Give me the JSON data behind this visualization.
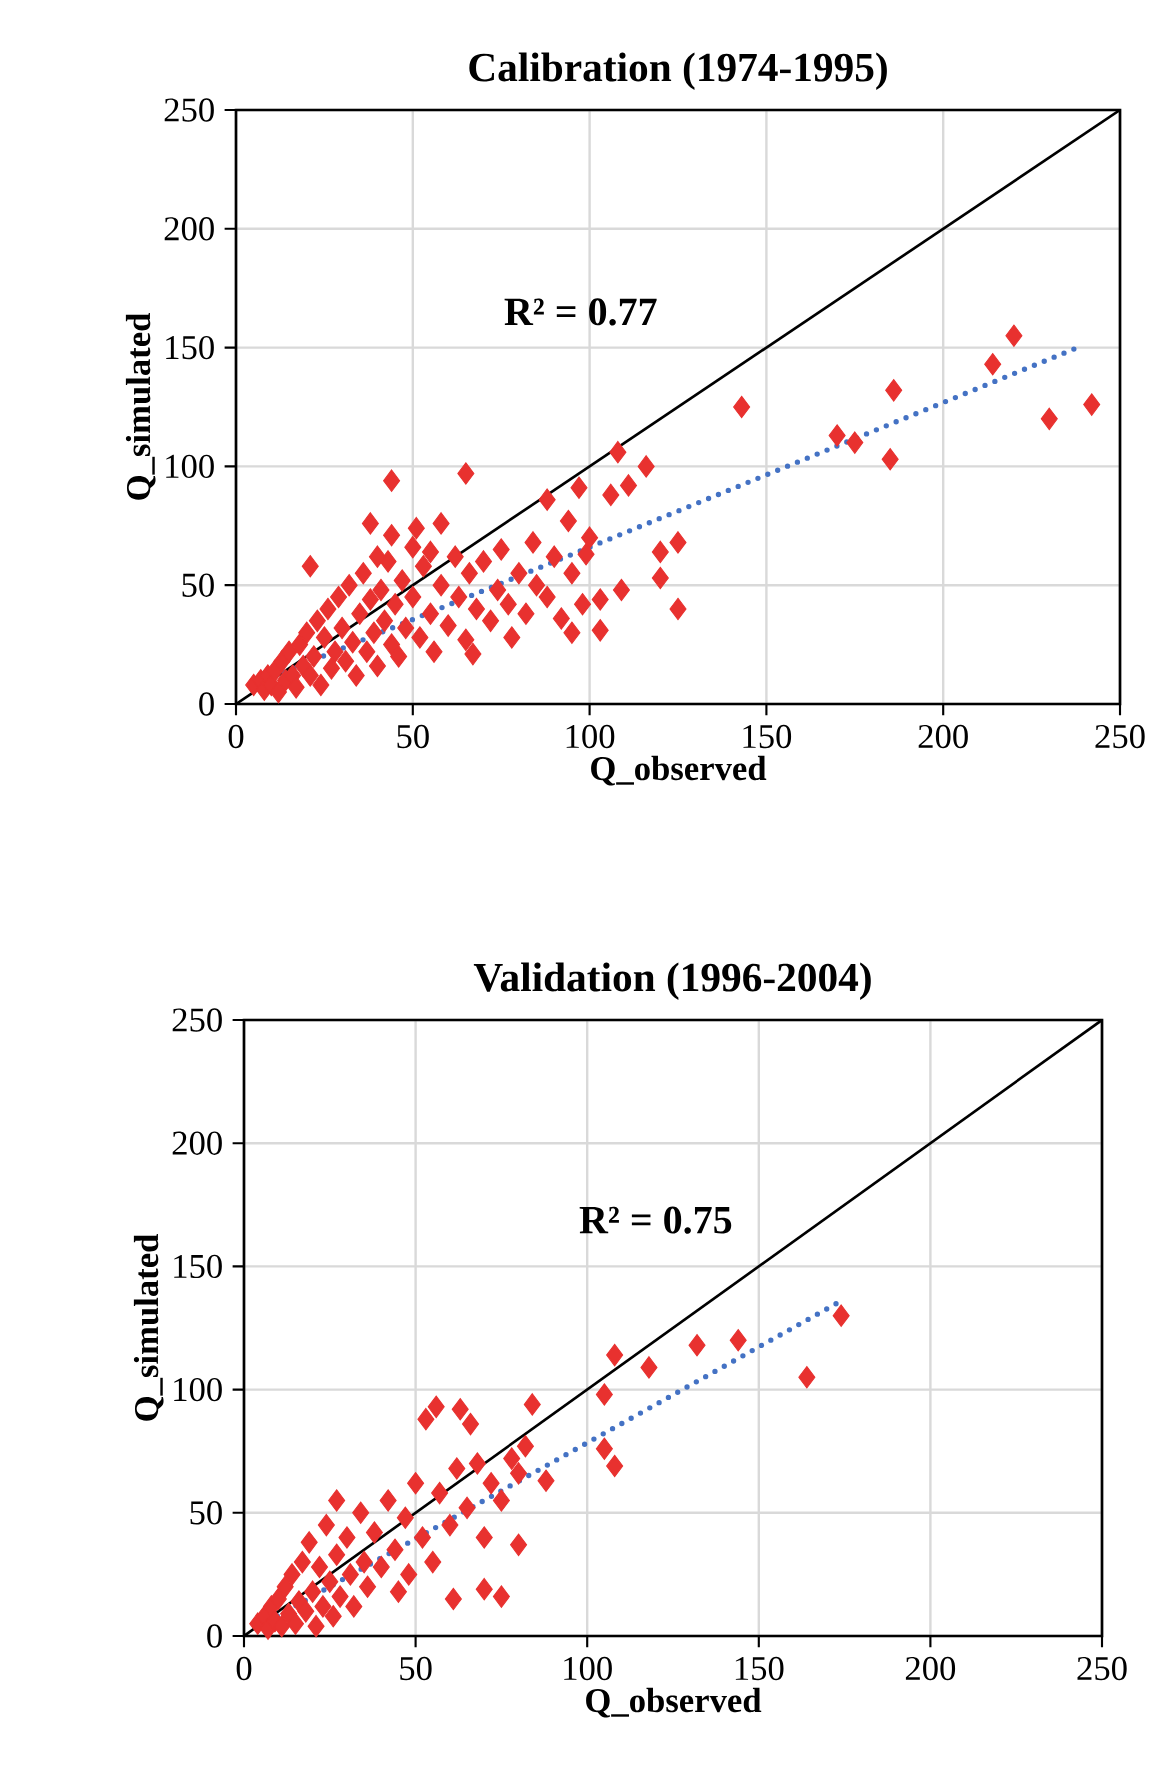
{
  "chart_data": [
    {
      "type": "scatter",
      "title": "Calibration (1974-1995)",
      "xlabel": "Q_observed",
      "ylabel": "Q_simulated",
      "xlim": [
        0,
        250
      ],
      "ylim": [
        0,
        250
      ],
      "xticks": [
        0,
        50,
        100,
        150,
        200,
        250
      ],
      "yticks": [
        0,
        50,
        100,
        150,
        200,
        250
      ],
      "grid": true,
      "annotations": [
        "R² = 0.77"
      ],
      "series": [
        {
          "color": "#e8312f",
          "marker": "diamond",
          "x": [
            5,
            7,
            8,
            9,
            10,
            11,
            12,
            13,
            14,
            15,
            16,
            17,
            18,
            19,
            20,
            21,
            22,
            23,
            24,
            25,
            26,
            27,
            28,
            29,
            30,
            31,
            32,
            33,
            34,
            35,
            36,
            37,
            38,
            39,
            40,
            41,
            42,
            43,
            44,
            45,
            46,
            47,
            48,
            50,
            52,
            53,
            55,
            56,
            58,
            60,
            62,
            63,
            65,
            66,
            68,
            70,
            72,
            74,
            75,
            77,
            78,
            80,
            82,
            84,
            85,
            88,
            90,
            92,
            95,
            98,
            100,
            40,
            50,
            55,
            220,
            214,
            242,
            230,
            186,
            185,
            170,
            175,
            143,
            108,
            116,
            111,
            106,
            97,
            88,
            94,
            125,
            120,
            120,
            125,
            109,
            103,
            103,
            95,
            99,
            44,
            65,
            38,
            44,
            51,
            58,
            21,
            67
          ],
          "values": [
            8,
            10,
            6,
            12,
            8,
            14,
            5,
            18,
            10,
            22,
            12,
            7,
            25,
            16,
            30,
            12,
            20,
            35,
            8,
            28,
            40,
            15,
            22,
            45,
            32,
            18,
            50,
            26,
            12,
            38,
            55,
            22,
            44,
            30,
            16,
            48,
            35,
            60,
            25,
            42,
            20,
            52,
            32,
            45,
            28,
            58,
            38,
            22,
            50,
            33,
            62,
            45,
            27,
            55,
            40,
            60,
            35,
            48,
            65,
            42,
            28,
            55,
            38,
            68,
            50,
            45,
            62,
            36,
            55,
            42,
            70,
            62,
            66,
            64,
            155,
            143,
            126,
            120,
            132,
            103,
            113,
            110,
            125,
            106,
            100,
            92,
            88,
            91,
            86,
            77,
            68,
            64,
            53,
            40,
            48,
            44,
            31,
            30,
            63,
            94,
            97,
            76,
            71,
            74,
            76,
            58,
            21
          ]
        },
        {
          "type": "line",
          "color": "#000000",
          "x": [
            0,
            250
          ],
          "values": [
            0,
            250
          ]
        },
        {
          "type": "line",
          "color": "#4472c4",
          "line_style": "dotted",
          "x": [
            8,
            238
          ],
          "values": [
            10,
            150
          ]
        }
      ]
    },
    {
      "type": "scatter",
      "title": "Validation (1996-2004)",
      "xlabel": "Q_observed",
      "ylabel": "Q_simulated",
      "xlim": [
        0,
        250
      ],
      "ylim": [
        0,
        250
      ],
      "xticks": [
        0,
        50,
        100,
        150,
        200,
        250
      ],
      "yticks": [
        0,
        50,
        100,
        150,
        200,
        250
      ],
      "grid": true,
      "annotations": [
        "R² = 0.75"
      ],
      "series": [
        {
          "color": "#e8312f",
          "marker": "diamond",
          "x": [
            4,
            6,
            7,
            8,
            9,
            10,
            11,
            12,
            13,
            14,
            15,
            16,
            17,
            18,
            19,
            20,
            21,
            22,
            23,
            24,
            25,
            26,
            27,
            28,
            30,
            31,
            32,
            34,
            35,
            36,
            38,
            40,
            42,
            44,
            45,
            47,
            48,
            50,
            52,
            55,
            57,
            60,
            62,
            65,
            68,
            70,
            72,
            75,
            78,
            80,
            174,
            164,
            144,
            132,
            118,
            108,
            105,
            105,
            108,
            84,
            56,
            63,
            66,
            53,
            88,
            80,
            75,
            70,
            61,
            27,
            82
          ],
          "values": [
            5,
            8,
            3,
            12,
            6,
            15,
            4,
            20,
            9,
            25,
            5,
            14,
            30,
            10,
            38,
            18,
            4,
            28,
            12,
            45,
            22,
            8,
            33,
            16,
            40,
            25,
            12,
            50,
            30,
            20,
            42,
            28,
            55,
            35,
            18,
            48,
            25,
            62,
            40,
            30,
            58,
            45,
            68,
            52,
            70,
            40,
            62,
            55,
            72,
            66,
            130,
            105,
            120,
            118,
            109,
            114,
            98,
            76,
            69,
            94,
            93,
            92,
            86,
            88,
            63,
            37,
            16,
            19,
            15,
            55,
            77
          ]
        },
        {
          "type": "line",
          "color": "#000000",
          "x": [
            0,
            250
          ],
          "values": [
            0,
            250
          ]
        },
        {
          "type": "line",
          "color": "#4472c4",
          "line_style": "dotted",
          "x": [
            7,
            174
          ],
          "values": [
            6,
            136
          ]
        }
      ]
    }
  ]
}
